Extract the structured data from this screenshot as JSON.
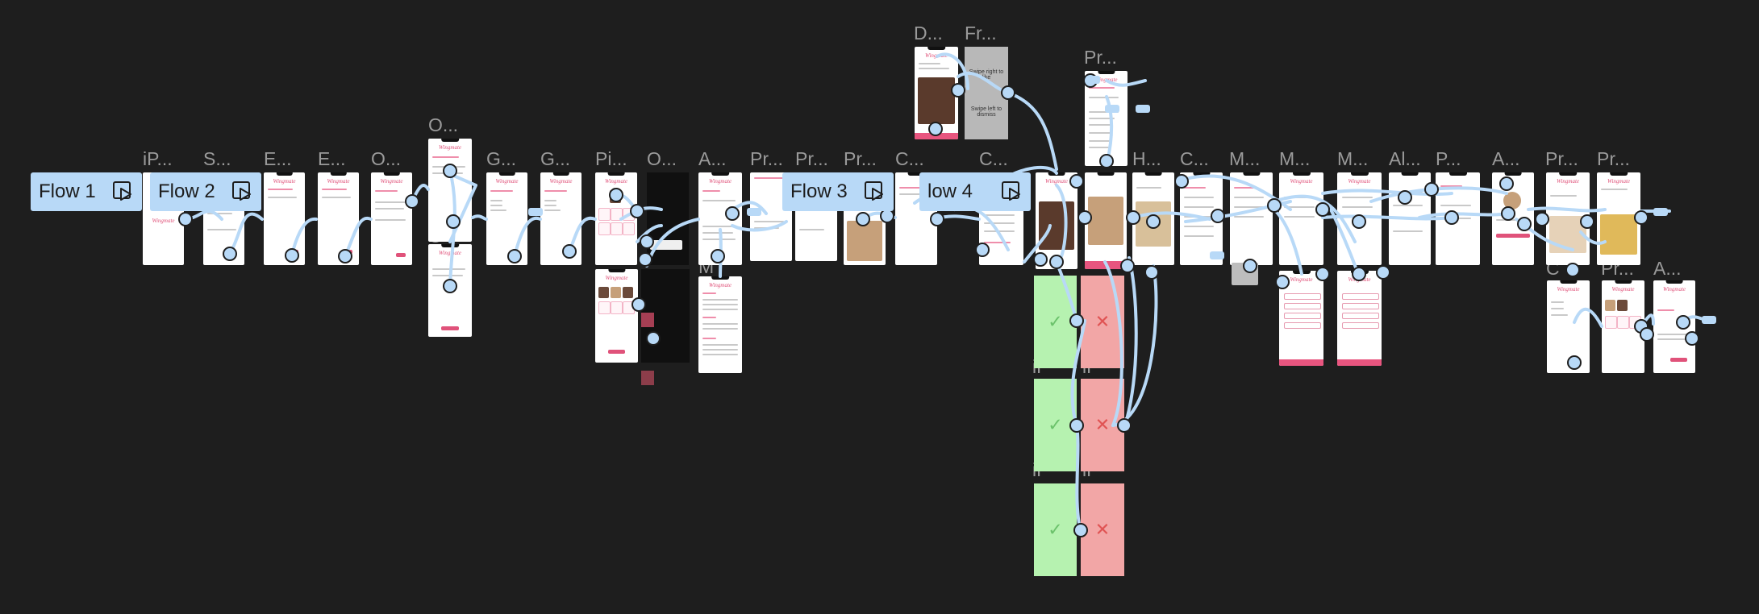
{
  "canvas": {
    "background": "#1e1e1e",
    "accent": "#b8d9f7",
    "brand_color": "#e0527a"
  },
  "app_brand": "Wingmate",
  "flows": [
    {
      "label": "Flow 1",
      "icon": "play-prototype-icon"
    },
    {
      "label": "Flow 2",
      "icon": "play-prototype-icon"
    },
    {
      "label": "Flow 3",
      "icon": "play-prototype-icon"
    },
    {
      "label": "low 4",
      "icon": "play-prototype-icon"
    }
  ],
  "frame_labels": {
    "iphone": "iP...",
    "splash": "S...",
    "email1": "E...",
    "email2": "E...",
    "onboard1": "O...",
    "onboard2": "O...",
    "onboard2b": "O",
    "gender1": "G...",
    "gender2": "G...",
    "pics": "Pi...",
    "onboard3": "O...",
    "about": "A...",
    "m_label": "M",
    "profile1": "Pr...",
    "profile2": "Pr...",
    "profile3": "Pr...",
    "chat1": "C...",
    "chat2": "C...",
    "detail": "D...",
    "frame": "Fr...",
    "profile_top": "Pr...",
    "home": "H...",
    "chat3": "C...",
    "match1": "M...",
    "match2": "M...",
    "match3": "M...",
    "all": "Al...",
    "p": "P...",
    "account": "A...",
    "profile4": "Pr...",
    "profile5": "Pr...",
    "c_small": "C",
    "pr_small": "Pr...",
    "a_small": "A...",
    "ip1": "iP",
    "ip2": "iP",
    "ip3": "iP",
    "ip4": "iP"
  },
  "grey_frame": {
    "line1": "Swipe right to like",
    "line2": "Swipe left to dismiss"
  },
  "result_marks": {
    "yes": "✓",
    "no": "✕"
  }
}
